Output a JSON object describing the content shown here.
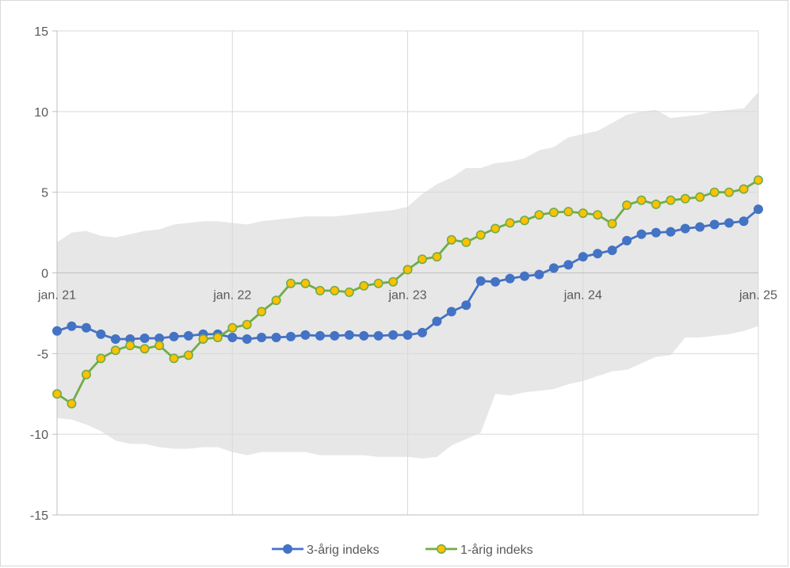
{
  "chart_data": {
    "type": "line",
    "title": "",
    "xlabel": "",
    "ylabel": "",
    "x_range": [
      "2021-01",
      "2025-01"
    ],
    "ylim": [
      -15,
      15
    ],
    "y_ticks": [
      "15",
      "10",
      "5",
      "0",
      "-5",
      "-10",
      "-15"
    ],
    "x_tick_labels": [
      "jan. 21",
      "jan. 22",
      "jan. 23",
      "jan. 24",
      "jan. 25"
    ],
    "grid": true,
    "legend_position": "bottom",
    "band": {
      "color": "#e7e7e7",
      "x": [
        "2021-01",
        "2021-02",
        "2021-03",
        "2021-04",
        "2021-05",
        "2021-06",
        "2021-07",
        "2021-08",
        "2021-09",
        "2021-10",
        "2021-11",
        "2021-12",
        "2022-01",
        "2022-02",
        "2022-03",
        "2022-04",
        "2022-05",
        "2022-06",
        "2022-07",
        "2022-08",
        "2022-09",
        "2022-10",
        "2022-11",
        "2022-12",
        "2023-01",
        "2023-02",
        "2023-03",
        "2023-04",
        "2023-05",
        "2023-06",
        "2023-07",
        "2023-08",
        "2023-09",
        "2023-10",
        "2023-11",
        "2023-12",
        "2024-01",
        "2024-02",
        "2024-03",
        "2024-04",
        "2024-05",
        "2024-06",
        "2024-07",
        "2024-08",
        "2024-09",
        "2024-10",
        "2024-11",
        "2024-12",
        "2025-01"
      ],
      "upper": [
        1.9,
        2.5,
        2.6,
        2.3,
        2.2,
        2.4,
        2.6,
        2.7,
        3.0,
        3.1,
        3.2,
        3.2,
        3.1,
        3.0,
        3.2,
        3.3,
        3.4,
        3.5,
        3.5,
        3.5,
        3.6,
        3.7,
        3.8,
        3.9,
        4.1,
        4.9,
        5.5,
        5.9,
        6.5,
        6.5,
        6.8,
        6.9,
        7.1,
        7.6,
        7.8,
        8.4,
        8.6,
        8.8,
        9.3,
        9.8,
        10.0,
        10.1,
        9.6,
        9.7,
        9.8,
        10.0,
        10.1,
        10.2,
        11.2
      ],
      "lower": [
        -9.0,
        -9.1,
        -9.4,
        -9.8,
        -10.4,
        -10.6,
        -10.6,
        -10.8,
        -10.9,
        -10.9,
        -10.8,
        -10.8,
        -11.1,
        -11.3,
        -11.1,
        -11.1,
        -11.1,
        -11.1,
        -11.3,
        -11.3,
        -11.3,
        -11.3,
        -11.4,
        -11.4,
        -11.4,
        -11.5,
        -11.4,
        -10.7,
        -10.3,
        -9.9,
        -7.5,
        -7.6,
        -7.4,
        -7.3,
        -7.2,
        -6.9,
        -6.7,
        -6.4,
        -6.1,
        -6.0,
        -5.6,
        -5.2,
        -5.1,
        -4.0,
        -4.0,
        -3.9,
        -3.8,
        -3.6,
        -3.3
      ]
    },
    "series": [
      {
        "name": "3-årig indeks",
        "color": "#4472c4",
        "marker_fill": "#4472c4",
        "marker_stroke": "#4472c4",
        "values": [
          -3.6,
          -3.3,
          -3.4,
          -3.8,
          -4.1,
          -4.1,
          -4.05,
          -4.05,
          -3.95,
          -3.9,
          -3.8,
          -3.8,
          -4.0,
          -4.1,
          -4.0,
          -4.0,
          -3.95,
          -3.85,
          -3.9,
          -3.9,
          -3.85,
          -3.9,
          -3.9,
          -3.85,
          -3.85,
          -3.7,
          -3.0,
          -2.4,
          -2.0,
          -0.5,
          -0.55,
          -0.35,
          -0.2,
          -0.1,
          0.3,
          0.5,
          1.0,
          1.2,
          1.4,
          2.0,
          2.4,
          2.5,
          2.55,
          2.75,
          2.85,
          3.0,
          3.1,
          3.2,
          3.95
        ]
      },
      {
        "name": "1-årig indeks",
        "color": "#70ad47",
        "marker_fill": "#ffc000",
        "marker_stroke": "#70ad47",
        "values": [
          -7.5,
          -8.1,
          -6.3,
          -5.3,
          -4.8,
          -4.5,
          -4.7,
          -4.5,
          -5.3,
          -5.1,
          -4.1,
          -4.0,
          -3.4,
          -3.2,
          -2.4,
          -1.7,
          -0.65,
          -0.65,
          -1.1,
          -1.1,
          -1.2,
          -0.8,
          -0.65,
          -0.55,
          0.2,
          0.85,
          1.0,
          2.05,
          1.9,
          2.35,
          2.75,
          3.1,
          3.25,
          3.6,
          3.75,
          3.8,
          3.7,
          3.6,
          3.05,
          4.2,
          4.5,
          4.25,
          4.5,
          4.6,
          4.7,
          5.0,
          5.0,
          5.2,
          5.75
        ]
      }
    ]
  }
}
